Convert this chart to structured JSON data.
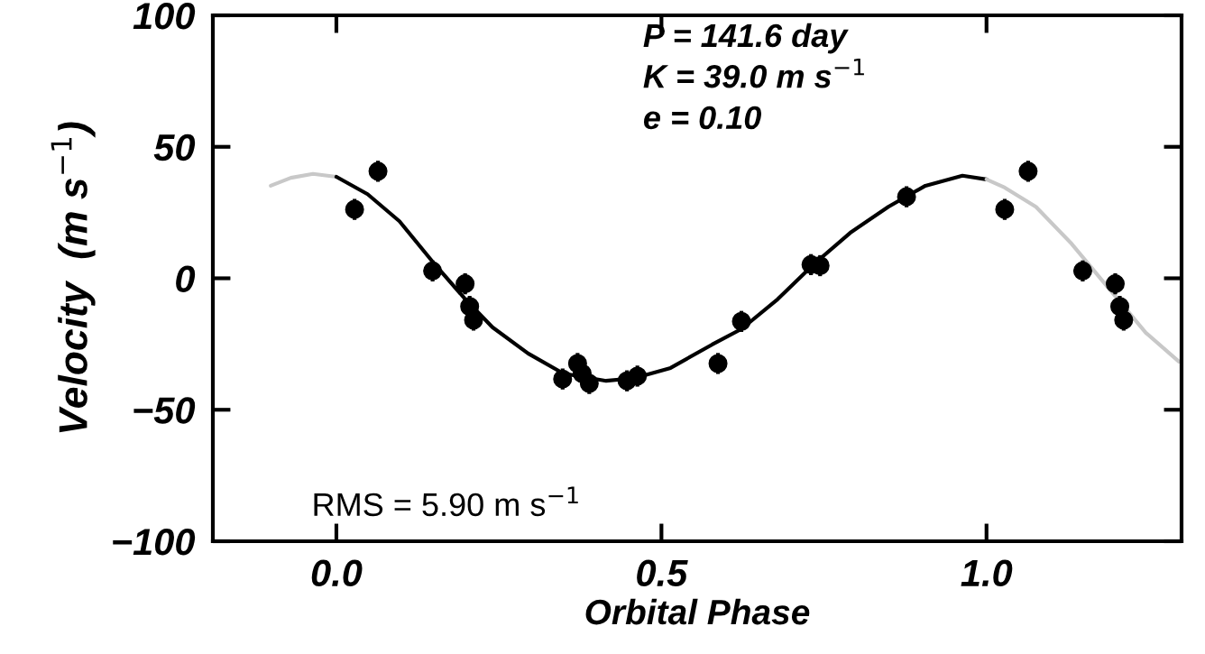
{
  "chart_data": {
    "type": "scatter",
    "xlabel": "Orbital Phase",
    "ylabel": "Velocity  (m s$^{−1}$)",
    "xlim": [
      -0.19,
      1.3
    ],
    "ylim": [
      -100,
      100
    ],
    "xticks": [
      {
        "value": 0,
        "label": "0.0"
      },
      {
        "value": 0.5,
        "label": "0.5"
      },
      {
        "value": 1,
        "label": "1.0"
      }
    ],
    "yticks": [
      {
        "value": -100,
        "label": "−100"
      },
      {
        "value": -50,
        "label": "−50"
      },
      0,
      50,
      100
    ],
    "grid": false,
    "legend": false,
    "annotations": [
      "P = 141.6 day",
      "K = 39.0 m s$^{−1}$",
      "e = 0.10",
      "RMS = 5.90 m s$^{−1}$"
    ],
    "series": [
      {
        "type": "line",
        "color": "#c8c8c8",
        "x": [
          -0.101,
          -0.07,
          -0.036,
          0.0
        ],
        "values": [
          35.2,
          38.2,
          39.7,
          38.6
        ]
      },
      {
        "type": "line",
        "color": "#000000",
        "x": [
          0.0,
          0.048,
          0.097,
          0.147,
          0.197,
          0.24,
          0.295,
          0.349,
          0.415,
          0.458,
          0.514,
          0.578,
          0.623,
          0.679,
          0.735,
          0.792,
          0.849,
          0.906,
          0.963,
          1.0
        ],
        "values": [
          38.6,
          32,
          21.7,
          6.6,
          -7.6,
          -18.6,
          -28.6,
          -36.2,
          -39,
          -38,
          -34.1,
          -25.2,
          -19.3,
          -7.9,
          5.5,
          17.6,
          27.2,
          35.2,
          39,
          37.6
        ]
      },
      {
        "type": "line",
        "color": "#c8c8c8",
        "x": [
          1.0,
          1.028,
          1.076,
          1.131,
          1.188,
          1.245,
          1.296
        ],
        "values": [
          37.6,
          34.5,
          27.2,
          13.1,
          -3.8,
          -20.7,
          -31.7
        ]
      },
      {
        "marker": "circle",
        "color": "#000000",
        "x": [
          0.028,
          0.064,
          0.148,
          0.198,
          0.205,
          0.211,
          0.348,
          0.371,
          0.378,
          0.389,
          0.447,
          0.463,
          0.587,
          0.623,
          0.73,
          0.744,
          0.877
        ],
        "values": [
          26.2,
          40.7,
          2.8,
          -2.1,
          -10.7,
          -15.9,
          -38.3,
          -32.4,
          -36.2,
          -40,
          -39,
          -37.2,
          -32.4,
          -16.4,
          5.2,
          4.8,
          31
        ],
        "errors": [
          4,
          4,
          4,
          4,
          4,
          4,
          4,
          4,
          4,
          4,
          4,
          4,
          4,
          4,
          4,
          4,
          4
        ]
      },
      {
        "marker": "circle",
        "color": "#000000",
        "x": [
          1.028,
          1.064,
          1.148,
          1.198,
          1.205,
          1.211
        ],
        "values": [
          26.2,
          40.7,
          2.8,
          -2.1,
          -10.7,
          -15.9
        ],
        "errors": [
          4,
          4,
          4,
          4,
          4,
          4
        ]
      }
    ]
  }
}
